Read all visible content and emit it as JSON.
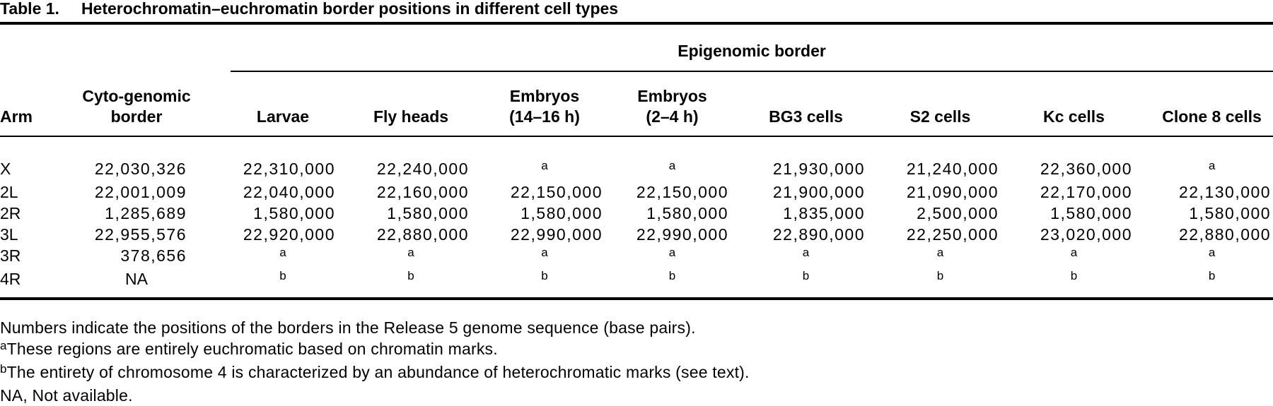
{
  "title": {
    "label": "Table 1.",
    "text": "Heterochromatin–euchromatin border positions in different cell types"
  },
  "table": {
    "span_header": "Epigenomic border",
    "columns": [
      {
        "id": "arm",
        "lines": [
          "Arm"
        ]
      },
      {
        "id": "cyto",
        "lines": [
          "Cyto-genomic",
          "border"
        ]
      },
      {
        "id": "larvae",
        "lines": [
          "Larvae"
        ]
      },
      {
        "id": "flyheads",
        "lines": [
          "Fly heads"
        ]
      },
      {
        "id": "embryos1416",
        "lines": [
          "Embryos",
          "(14–16 h)"
        ]
      },
      {
        "id": "embryos24",
        "lines": [
          "Embryos",
          "(2–4 h)"
        ]
      },
      {
        "id": "bg3",
        "lines": [
          "BG3 cells"
        ]
      },
      {
        "id": "s2",
        "lines": [
          "S2 cells"
        ]
      },
      {
        "id": "kc",
        "lines": [
          "Kc cells"
        ]
      },
      {
        "id": "clone8",
        "lines": [
          "Clone 8 cells"
        ]
      }
    ],
    "rows": [
      {
        "cells": [
          {
            "t": "arm",
            "v": "X"
          },
          {
            "t": "num",
            "v": "22,030,326"
          },
          {
            "t": "num",
            "v": "22,310,000"
          },
          {
            "t": "num",
            "v": "22,240,000"
          },
          {
            "t": "sup",
            "v": "a"
          },
          {
            "t": "sup",
            "v": "a"
          },
          {
            "t": "num",
            "v": "21,930,000"
          },
          {
            "t": "num",
            "v": "21,240,000"
          },
          {
            "t": "num",
            "v": "22,360,000"
          },
          {
            "t": "sup",
            "v": "a"
          }
        ]
      },
      {
        "cells": [
          {
            "t": "arm",
            "v": "2L"
          },
          {
            "t": "num",
            "v": "22,001,009"
          },
          {
            "t": "num",
            "v": "22,040,000"
          },
          {
            "t": "num",
            "v": "22,160,000"
          },
          {
            "t": "num",
            "v": "22,150,000"
          },
          {
            "t": "num",
            "v": "22,150,000"
          },
          {
            "t": "num",
            "v": "21,900,000"
          },
          {
            "t": "num",
            "v": "21,090,000"
          },
          {
            "t": "num",
            "v": "22,170,000"
          },
          {
            "t": "num",
            "v": "22,130,000"
          }
        ]
      },
      {
        "cells": [
          {
            "t": "arm",
            "v": "2R"
          },
          {
            "t": "num",
            "v": "1,285,689"
          },
          {
            "t": "num",
            "v": "1,580,000"
          },
          {
            "t": "num",
            "v": "1,580,000"
          },
          {
            "t": "num",
            "v": "1,580,000"
          },
          {
            "t": "num",
            "v": "1,580,000"
          },
          {
            "t": "num",
            "v": "1,835,000"
          },
          {
            "t": "num",
            "v": "2,500,000"
          },
          {
            "t": "num",
            "v": "1,580,000"
          },
          {
            "t": "num",
            "v": "1,580,000"
          }
        ]
      },
      {
        "cells": [
          {
            "t": "arm",
            "v": "3L"
          },
          {
            "t": "num",
            "v": "22,955,576"
          },
          {
            "t": "num",
            "v": "22,920,000"
          },
          {
            "t": "num",
            "v": "22,880,000"
          },
          {
            "t": "num",
            "v": "22,990,000"
          },
          {
            "t": "num",
            "v": "22,990,000"
          },
          {
            "t": "num",
            "v": "22,890,000"
          },
          {
            "t": "num",
            "v": "22,250,000"
          },
          {
            "t": "num",
            "v": "23,020,000"
          },
          {
            "t": "num",
            "v": "22,880,000"
          }
        ]
      },
      {
        "cells": [
          {
            "t": "arm",
            "v": "3R"
          },
          {
            "t": "num",
            "v": "378,656"
          },
          {
            "t": "sup",
            "v": "a"
          },
          {
            "t": "sup",
            "v": "a"
          },
          {
            "t": "sup",
            "v": "a"
          },
          {
            "t": "sup",
            "v": "a"
          },
          {
            "t": "sup",
            "v": "a"
          },
          {
            "t": "sup",
            "v": "a"
          },
          {
            "t": "sup",
            "v": "a"
          },
          {
            "t": "sup",
            "v": "a"
          }
        ]
      },
      {
        "cells": [
          {
            "t": "arm",
            "v": "4R"
          },
          {
            "t": "na",
            "v": "NA"
          },
          {
            "t": "sup",
            "v": "b"
          },
          {
            "t": "sup",
            "v": "b"
          },
          {
            "t": "sup",
            "v": "b"
          },
          {
            "t": "sup",
            "v": "b"
          },
          {
            "t": "sup",
            "v": "b"
          },
          {
            "t": "sup",
            "v": "b"
          },
          {
            "t": "sup",
            "v": "b"
          },
          {
            "t": "sup",
            "v": "b"
          }
        ]
      }
    ]
  },
  "footnotes": [
    {
      "sup": "",
      "text": "Numbers indicate the positions of the borders in the Release 5 genome sequence (base pairs)."
    },
    {
      "sup": "a",
      "text": "These regions are entirely euchromatic based on chromatin marks."
    },
    {
      "sup": "b",
      "text": "The entirety of chromosome 4 is characterized by an abundance of heterochromatic marks (see text)."
    },
    {
      "sup": "",
      "text": "NA, Not available."
    }
  ]
}
